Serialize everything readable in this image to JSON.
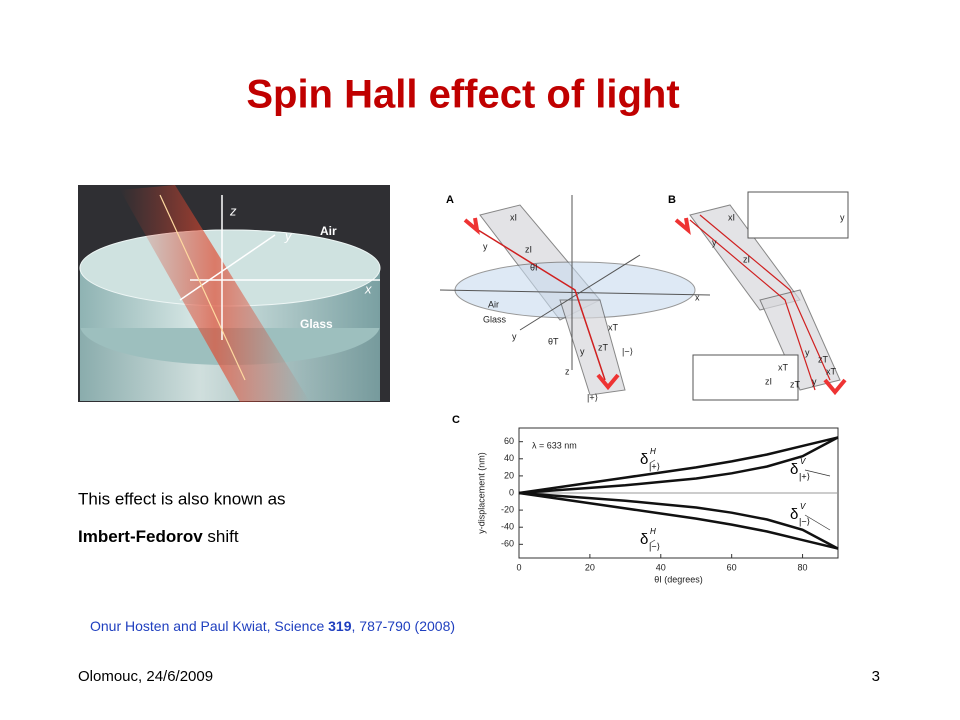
{
  "title": "Spin Hall effect of light",
  "left_figure": {
    "labels": [
      "z",
      "y",
      "Air",
      "x",
      "Glass"
    ]
  },
  "panel_a": {
    "label": "A",
    "texts": [
      "Air",
      "Glass",
      "x",
      "y",
      "z",
      "θI",
      "θT",
      "|+⟩",
      "|−⟩",
      "xI",
      "zI",
      "xT",
      "zT",
      "y",
      "y"
    ]
  },
  "panel_b": {
    "label": "B",
    "texts": [
      "xI",
      "zI",
      "y",
      "xT",
      "zT",
      "y",
      "y",
      "zI",
      "xT",
      "zT",
      "y"
    ]
  },
  "body": {
    "line1": "This effect is also known as",
    "line2_bold": "Imbert-Fedorov",
    "line2_rest": " shift"
  },
  "citation": {
    "before": "Onur Hosten and Paul Kwiat, Science ",
    "volume": "319",
    "after": ", 787-790 (2008)"
  },
  "footer": {
    "place_date": "Olomouc, 24/6/2009",
    "page": "3"
  },
  "chart_data": {
    "type": "line",
    "panel_label": "C",
    "annotation": "λ = 633 nm",
    "y_label": "y-displacement (nm)",
    "x_label": "θI (degrees)",
    "x": [
      0,
      10,
      20,
      30,
      40,
      50,
      60,
      70,
      80,
      90
    ],
    "series": [
      {
        "symbol": "δ",
        "superscript": "H",
        "subscript": "|+⟩",
        "color": "#111111",
        "values": [
          0,
          6,
          12,
          18,
          24,
          30,
          37,
          45,
          55,
          65
        ]
      },
      {
        "symbol": "δ",
        "superscript": "V",
        "subscript": "|+⟩",
        "color": "#111111",
        "values": [
          0,
          3,
          6,
          9,
          13,
          17,
          23,
          31,
          43,
          65
        ]
      },
      {
        "symbol": "δ",
        "superscript": "V",
        "subscript": "|−⟩",
        "color": "#111111",
        "values": [
          0,
          -3,
          -6,
          -9,
          -13,
          -17,
          -23,
          -31,
          -43,
          -65
        ]
      },
      {
        "symbol": "δ",
        "superscript": "H",
        "subscript": "|−⟩",
        "color": "#111111",
        "values": [
          0,
          -6,
          -12,
          -18,
          -24,
          -30,
          -37,
          -45,
          -55,
          -65
        ]
      }
    ],
    "xlim": [
      0,
      90
    ],
    "ylim": [
      -76,
      76
    ],
    "xticks": [
      0,
      20,
      40,
      60,
      80
    ],
    "yticks": [
      60,
      40,
      20,
      0,
      -20,
      -40,
      -60
    ]
  }
}
